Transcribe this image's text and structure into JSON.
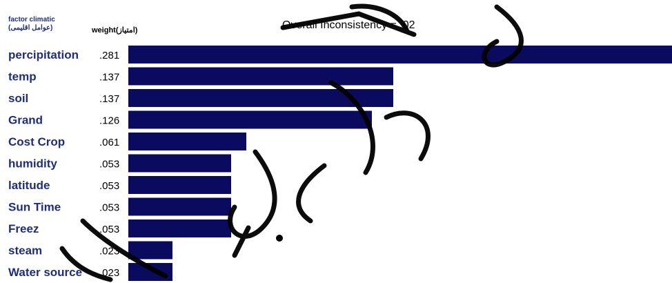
{
  "chart_data": {
    "type": "bar",
    "orientation": "horizontal",
    "title": "Overall Inconsistency = .02",
    "column_headers": {
      "factor_line1": "factor climatic",
      "factor_line2": "(عوامل اقلیمی)",
      "weight": "weight(امتیاز)"
    },
    "categories": [
      "percipitation",
      "temp",
      "soil",
      "Grand",
      "Cost Crop",
      "humidity",
      "latitude",
      "Sun Time",
      "Freez",
      "steam",
      "Water source"
    ],
    "value_labels": [
      ".281",
      ".137",
      ".137",
      ".126",
      ".061",
      ".053",
      ".053",
      ".053",
      ".053",
      ".023",
      ".023"
    ],
    "values": [
      0.281,
      0.137,
      0.137,
      0.126,
      0.061,
      0.053,
      0.053,
      0.053,
      0.053,
      0.023,
      0.023
    ],
    "bar_color": "#0a0a5e",
    "label_color": "#1f2d7a",
    "grid": false,
    "legend": "none"
  },
  "watermark_color": "#000000"
}
